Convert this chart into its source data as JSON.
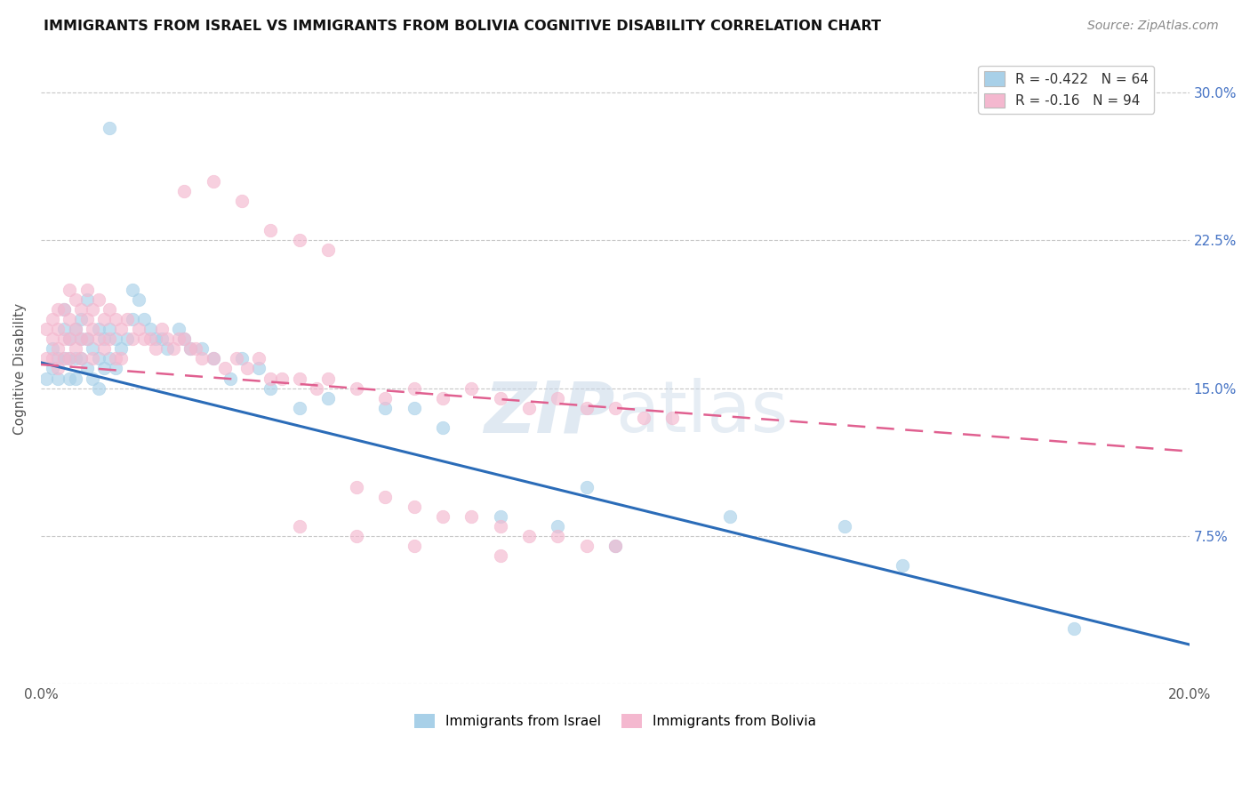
{
  "title": "IMMIGRANTS FROM ISRAEL VS IMMIGRANTS FROM BOLIVIA COGNITIVE DISABILITY CORRELATION CHART",
  "source": "Source: ZipAtlas.com",
  "ylabel": "Cognitive Disability",
  "xlim": [
    0.0,
    0.2
  ],
  "ylim": [
    0.0,
    0.32
  ],
  "ytick_values": [
    0.0,
    0.075,
    0.15,
    0.225,
    0.3
  ],
  "xtick_values": [
    0.0,
    0.02,
    0.04,
    0.06,
    0.08,
    0.1,
    0.12,
    0.14,
    0.16,
    0.18,
    0.2
  ],
  "israel_R": -0.422,
  "israel_N": 64,
  "bolivia_R": -0.16,
  "bolivia_N": 94,
  "israel_color": "#a8d0e8",
  "bolivia_color": "#f4b8cf",
  "israel_line_color": "#2b6cb8",
  "bolivia_line_color": "#e06090",
  "legend_labels": [
    "Immigrants from Israel",
    "Immigrants from Bolivia"
  ],
  "israel_line_start_y": 0.163,
  "israel_line_end_y": 0.02,
  "bolivia_line_start_y": 0.162,
  "bolivia_line_end_y": 0.118,
  "israel_scatter_x": [
    0.012,
    0.001,
    0.002,
    0.002,
    0.003,
    0.003,
    0.004,
    0.004,
    0.004,
    0.005,
    0.005,
    0.005,
    0.006,
    0.006,
    0.006,
    0.007,
    0.007,
    0.007,
    0.008,
    0.008,
    0.008,
    0.009,
    0.009,
    0.01,
    0.01,
    0.01,
    0.011,
    0.011,
    0.012,
    0.012,
    0.013,
    0.013,
    0.014,
    0.015,
    0.016,
    0.016,
    0.017,
    0.018,
    0.019,
    0.02,
    0.021,
    0.022,
    0.024,
    0.025,
    0.026,
    0.028,
    0.03,
    0.033,
    0.035,
    0.038,
    0.04,
    0.045,
    0.05,
    0.06,
    0.065,
    0.07,
    0.08,
    0.09,
    0.095,
    0.1,
    0.12,
    0.14,
    0.15,
    0.18
  ],
  "israel_scatter_y": [
    0.282,
    0.155,
    0.17,
    0.16,
    0.165,
    0.155,
    0.19,
    0.18,
    0.165,
    0.175,
    0.165,
    0.155,
    0.18,
    0.165,
    0.155,
    0.185,
    0.175,
    0.165,
    0.195,
    0.175,
    0.16,
    0.17,
    0.155,
    0.18,
    0.165,
    0.15,
    0.175,
    0.16,
    0.18,
    0.165,
    0.175,
    0.16,
    0.17,
    0.175,
    0.2,
    0.185,
    0.195,
    0.185,
    0.18,
    0.175,
    0.175,
    0.17,
    0.18,
    0.175,
    0.17,
    0.17,
    0.165,
    0.155,
    0.165,
    0.16,
    0.15,
    0.14,
    0.145,
    0.14,
    0.14,
    0.13,
    0.085,
    0.08,
    0.1,
    0.07,
    0.085,
    0.08,
    0.06,
    0.028
  ],
  "bolivia_scatter_x": [
    0.001,
    0.001,
    0.002,
    0.002,
    0.002,
    0.003,
    0.003,
    0.003,
    0.003,
    0.004,
    0.004,
    0.004,
    0.005,
    0.005,
    0.005,
    0.005,
    0.006,
    0.006,
    0.006,
    0.007,
    0.007,
    0.007,
    0.008,
    0.008,
    0.008,
    0.009,
    0.009,
    0.009,
    0.01,
    0.01,
    0.011,
    0.011,
    0.012,
    0.012,
    0.013,
    0.013,
    0.014,
    0.014,
    0.015,
    0.016,
    0.017,
    0.018,
    0.019,
    0.02,
    0.021,
    0.022,
    0.023,
    0.024,
    0.025,
    0.026,
    0.027,
    0.028,
    0.03,
    0.032,
    0.034,
    0.036,
    0.038,
    0.04,
    0.042,
    0.045,
    0.048,
    0.05,
    0.055,
    0.06,
    0.065,
    0.07,
    0.075,
    0.08,
    0.085,
    0.09,
    0.095,
    0.1,
    0.105,
    0.11,
    0.025,
    0.03,
    0.035,
    0.04,
    0.045,
    0.05,
    0.055,
    0.06,
    0.065,
    0.07,
    0.075,
    0.08,
    0.085,
    0.09,
    0.095,
    0.1,
    0.045,
    0.055,
    0.065,
    0.08
  ],
  "bolivia_scatter_y": [
    0.18,
    0.165,
    0.185,
    0.175,
    0.165,
    0.19,
    0.18,
    0.17,
    0.16,
    0.19,
    0.175,
    0.165,
    0.2,
    0.185,
    0.175,
    0.165,
    0.195,
    0.18,
    0.17,
    0.19,
    0.175,
    0.165,
    0.2,
    0.185,
    0.175,
    0.19,
    0.18,
    0.165,
    0.195,
    0.175,
    0.185,
    0.17,
    0.19,
    0.175,
    0.185,
    0.165,
    0.18,
    0.165,
    0.185,
    0.175,
    0.18,
    0.175,
    0.175,
    0.17,
    0.18,
    0.175,
    0.17,
    0.175,
    0.175,
    0.17,
    0.17,
    0.165,
    0.165,
    0.16,
    0.165,
    0.16,
    0.165,
    0.155,
    0.155,
    0.155,
    0.15,
    0.155,
    0.15,
    0.145,
    0.15,
    0.145,
    0.15,
    0.145,
    0.14,
    0.145,
    0.14,
    0.14,
    0.135,
    0.135,
    0.25,
    0.255,
    0.245,
    0.23,
    0.225,
    0.22,
    0.1,
    0.095,
    0.09,
    0.085,
    0.085,
    0.08,
    0.075,
    0.075,
    0.07,
    0.07,
    0.08,
    0.075,
    0.07,
    0.065
  ]
}
